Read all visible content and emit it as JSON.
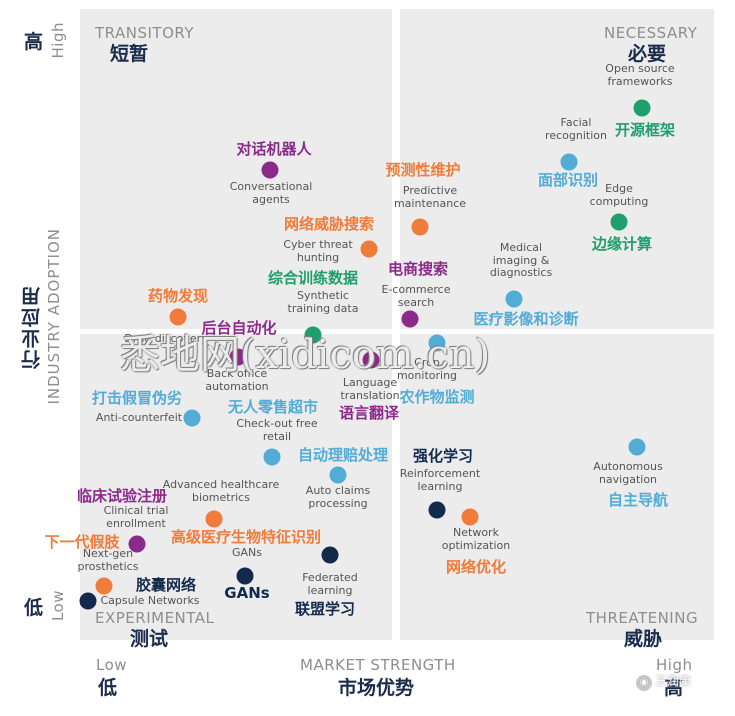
{
  "colors": {
    "purple": "#8b2a8a",
    "orange": "#f07b3a",
    "green": "#1f9e6e",
    "blue": "#52acd6",
    "navy": "#132a4c"
  },
  "axes": {
    "y_high_zh": "高",
    "y_high_en": "High",
    "y_title_zh": "行业应用",
    "y_title_en": "INDUSTRY ADOPTION",
    "y_low_zh": "低",
    "y_low_en": "Low",
    "x_low_en": "Low",
    "x_low_zh": "低",
    "x_title_en": "MARKET STRENGTH",
    "x_title_zh": "市场优势",
    "x_high_en": "High",
    "x_high_zh": "高"
  },
  "quadrants": {
    "tl": {
      "en": "TRANSITORY",
      "zh": "短暂"
    },
    "tr": {
      "en": "NECESSARY",
      "zh": "必要"
    },
    "bl": {
      "en": "EXPERIMENTAL",
      "zh": "测试"
    },
    "br": {
      "en": "THREATENING",
      "zh": "威胁"
    }
  },
  "items": [
    {
      "key": "open_source",
      "zh": "开源框架",
      "en": "Open source\nframeworks",
      "color": "green"
    },
    {
      "key": "facial",
      "zh": "面部识别",
      "en": "Facial\nrecognition",
      "color": "blue"
    },
    {
      "key": "edge",
      "zh": "边缘计算",
      "en": "Edge\ncomputing",
      "color": "green"
    },
    {
      "key": "conv_agents",
      "zh": "对话机器人",
      "en": "Conversational\nagents",
      "color": "purple"
    },
    {
      "key": "predictive",
      "zh": "预测性维护",
      "en": "Predictive\nmaintenance",
      "color": "orange"
    },
    {
      "key": "cyber",
      "zh": "网络威胁搜索",
      "en": "Cyber threat\nhunting",
      "color": "orange"
    },
    {
      "key": "synthetic",
      "zh": "综合训练数据",
      "en": "Synthetic\ntraining data",
      "color": "green"
    },
    {
      "key": "ecommerce",
      "zh": "电商搜索",
      "en": "E-commerce\nsearch",
      "color": "purple"
    },
    {
      "key": "medical",
      "zh": "医疗影像和诊断",
      "en": "Medical\nimaging &\ndiagnostics",
      "color": "blue"
    },
    {
      "key": "drug",
      "zh": "药物发现",
      "en": "Drug discovery",
      "color": "orange"
    },
    {
      "key": "backoffice",
      "zh": "后台自动化",
      "en": "Back office\nautomation",
      "color": "purple"
    },
    {
      "key": "crop",
      "zh": "农作物监测",
      "en": "Crop\nmonitoring",
      "color": "blue"
    },
    {
      "key": "language",
      "zh": "语言翻译",
      "en": "Language\ntranslation",
      "color": "purple"
    },
    {
      "key": "anticounterfeit",
      "zh": "打击假冒伪劣",
      "en": "Anti-counterfeit",
      "color": "blue"
    },
    {
      "key": "checkout",
      "zh": "无人零售超市",
      "en": "Check-out free\nretail",
      "color": "blue"
    },
    {
      "key": "claims",
      "zh": "自动理赔处理",
      "en": "Auto claims\nprocessing",
      "color": "blue"
    },
    {
      "key": "autonomous",
      "zh": "自主导航",
      "en": "Autonomous\nnavigation",
      "color": "blue"
    },
    {
      "key": "reinforcement",
      "zh": "强化学习",
      "en": "Reinforcement\nlearning",
      "color": "navy"
    },
    {
      "key": "network_opt",
      "zh": "网络优化",
      "en": "Network\noptimization",
      "color": "orange"
    },
    {
      "key": "biometrics",
      "zh": "高级医疗生物特征识别",
      "en": "Advanced healthcare\nbiometrics",
      "color": "orange"
    },
    {
      "key": "clinical",
      "zh": "临床试验注册",
      "en": "Clinical trial\nenrollment",
      "color": "purple"
    },
    {
      "key": "prosthetics",
      "zh": "下一代假肢",
      "en": "Next-gen\nprosthetics",
      "color": "orange"
    },
    {
      "key": "gans",
      "zh": "GANs",
      "en": "GANs",
      "color": "navy"
    },
    {
      "key": "federated",
      "zh": "联盟学习",
      "en": "Federated\nlearning",
      "color": "navy"
    },
    {
      "key": "capsule",
      "zh": "胶囊网络",
      "en": "Capsule Networks",
      "color": "navy"
    }
  ],
  "watermark": "悉地网(xidicom.cn)",
  "wechat_label": "王润康"
}
